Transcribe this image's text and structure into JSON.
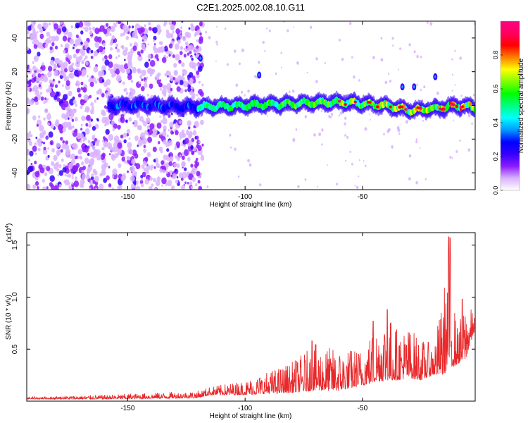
{
  "title": "C2E1.2025.002.08.10.G11",
  "chart_data": [
    {
      "type": "heatmap",
      "xlabel": "Height of straight line (km)",
      "ylabel": "Frequency (Hz)",
      "xlim": [
        -193,
        -2
      ],
      "ylim": [
        -50,
        50
      ],
      "x_ticks": [
        -150,
        -100,
        -50
      ],
      "y_ticks": [
        -40,
        -20,
        0,
        20,
        40
      ],
      "colorbar": {
        "label": "Normalized spectral amplitude",
        "range": [
          0,
          1
        ],
        "ticks": [
          "0.0",
          "0.2",
          "0.4",
          "0.6",
          "0.8"
        ],
        "colors": [
          "#ffffff",
          "#d9b3ff",
          "#8c1aff",
          "#3300ff",
          "#0000ff",
          "#0099ff",
          "#00ffff",
          "#00ff80",
          "#00ff00",
          "#80ff00",
          "#ffff00",
          "#ff8000",
          "#ff0000",
          "#ff0060",
          "#ff0080"
        ]
      },
      "ridge": {
        "description_points_x": [
          -157,
          -140,
          -120,
          -100,
          -80,
          -60,
          -40,
          -30,
          -20,
          -10,
          -2
        ],
        "frequency_hz": [
          0,
          0,
          -1,
          0,
          1,
          2,
          0,
          -3,
          -2,
          0,
          -1
        ]
      },
      "outlier_spots": [
        {
          "x": -19,
          "y": 17
        },
        {
          "x": -28,
          "y": 11
        },
        {
          "x": -33,
          "y": 11
        },
        {
          "x": -94,
          "y": 18
        },
        {
          "x": -119,
          "y": 28
        }
      ]
    },
    {
      "type": "line",
      "xlabel": "Height of straight line (km)",
      "ylabel": "SNR (10 * v/v)",
      "y_multiplier": "(x10",
      "y_multiplier_exp": "4",
      "y_multiplier_close": ")",
      "xlim": [
        -193,
        -2
      ],
      "ylim": [
        0,
        1.62
      ],
      "x_ticks": [
        -150,
        -100,
        -50
      ],
      "y_ticks": [
        "0.5",
        "1.0",
        "1.5"
      ],
      "y_tick_values": [
        0.5,
        1.0,
        1.5
      ],
      "line_color": "#e8282a",
      "envelope": {
        "x": [
          -193,
          -160,
          -140,
          -120,
          -115,
          -100,
          -80,
          -70,
          -60,
          -50,
          -45,
          -40,
          -35,
          -30,
          -25,
          -20,
          -16,
          -13,
          -10,
          -6,
          -2
        ],
        "base": [
          0.02,
          0.02,
          0.025,
          0.03,
          0.06,
          0.06,
          0.08,
          0.1,
          0.1,
          0.15,
          0.18,
          0.2,
          0.2,
          0.22,
          0.2,
          0.25,
          0.25,
          0.3,
          0.35,
          0.4,
          0.7
        ],
        "peak": [
          0.04,
          0.06,
          0.08,
          0.1,
          0.14,
          0.2,
          0.38,
          0.55,
          0.5,
          0.52,
          0.72,
          0.88,
          0.7,
          0.72,
          0.6,
          0.55,
          0.95,
          1.58,
          0.7,
          0.98,
          0.82
        ]
      },
      "spikes": [
        {
          "x": -13.3,
          "y": 1.58
        },
        {
          "x": -12.7,
          "y": 1.57
        },
        {
          "x": -39.5,
          "y": 0.88
        },
        {
          "x": -45.5,
          "y": 0.77
        },
        {
          "x": -7.5,
          "y": 0.98
        },
        {
          "x": -71.5,
          "y": 0.58
        }
      ]
    }
  ]
}
